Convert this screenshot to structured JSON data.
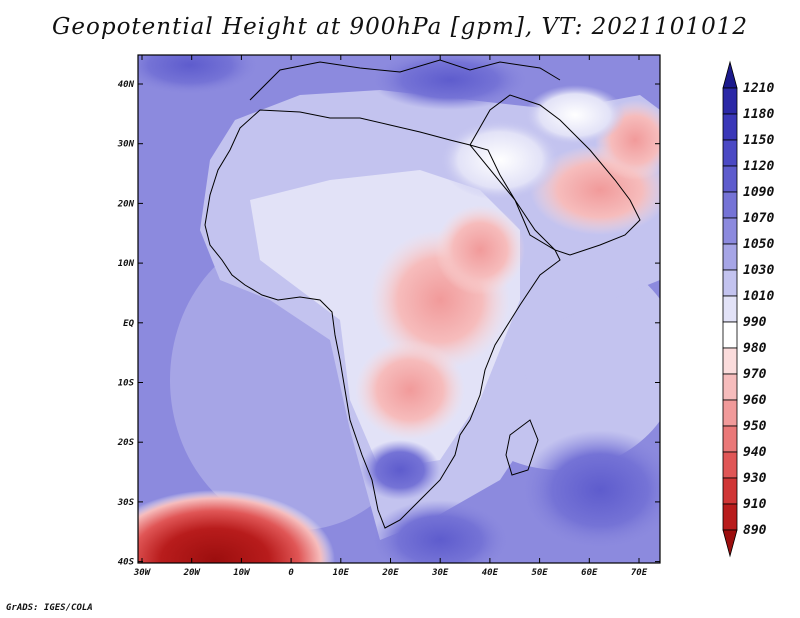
{
  "title": "Geopotential Height at 900hPa [gpm], VT: 2021101012",
  "credit": "GrADS: IGES/COLA",
  "map": {
    "lon_ticks": [
      "30W",
      "20W",
      "10W",
      "0",
      "10E",
      "20E",
      "30E",
      "40E",
      "50E",
      "60E",
      "70E"
    ],
    "lat_ticks": [
      "40N",
      "30N",
      "20N",
      "10N",
      "EQ",
      "10S",
      "20S",
      "30S",
      "40S"
    ],
    "lon_range": [
      -30,
      75
    ],
    "lat_range": [
      -40,
      45
    ]
  },
  "colorbar": {
    "levels": [
      "1210",
      "1180",
      "1150",
      "1120",
      "1090",
      "1070",
      "1050",
      "1030",
      "1010",
      "990",
      "980",
      "970",
      "960",
      "950",
      "940",
      "930",
      "910",
      "890"
    ],
    "colors": [
      "#1c1a8c",
      "#2b28a6",
      "#3a37b8",
      "#4b49c4",
      "#5e5ccd",
      "#7573d6",
      "#8c8ade",
      "#a6a5e6",
      "#c3c3ef",
      "#e2e2f7",
      "#ffffff",
      "#fbdcdc",
      "#f6bcbc",
      "#f19a9a",
      "#ea7878",
      "#e05656",
      "#d03636",
      "#b81c1c",
      "#9c0e0e"
    ]
  }
}
